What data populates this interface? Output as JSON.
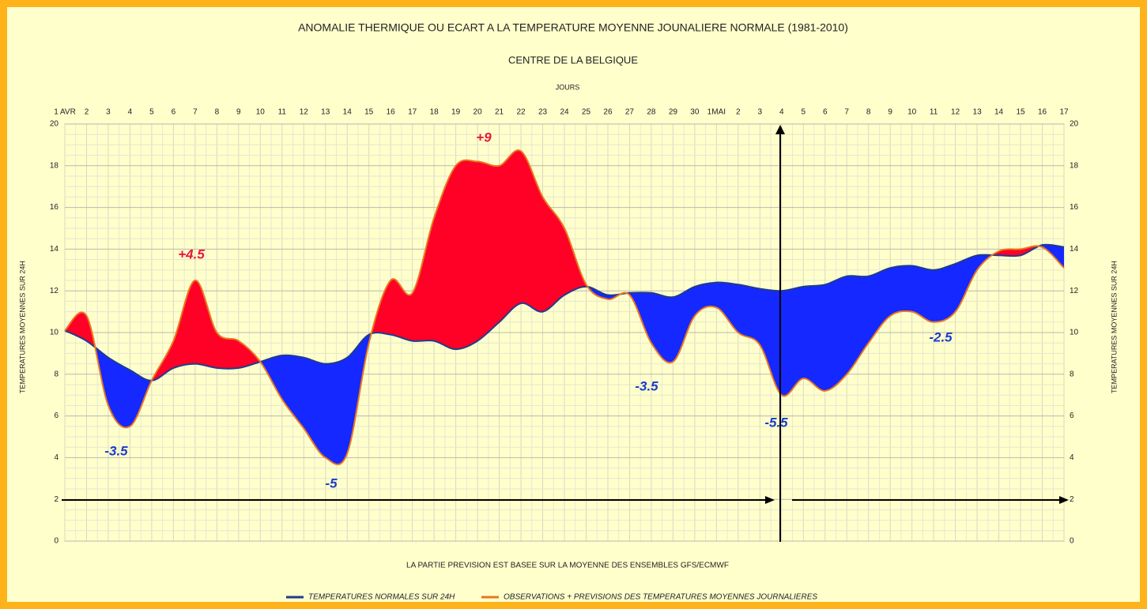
{
  "chart_data": {
    "type": "line",
    "title": "ANOMALIE THERMIQUE OU ECART A LA TEMPERATURE MOYENNE JOUNALIERE NORMALE (1981-2010)",
    "subtitle": "CENTRE DE LA BELGIQUE",
    "xlabel": "JOURS",
    "ylabel": "TEMPERATURES MOYENNES SUR 24H",
    "note": "LA PARTIE PREVISION EST BASEE SUR LA MOYENNE DES ENSEMBLES GFS/ECMWF",
    "categories": [
      "1 AVR",
      "2",
      "3",
      "4",
      "5",
      "6",
      "7",
      "8",
      "9",
      "10",
      "11",
      "12",
      "13",
      "14",
      "15",
      "16",
      "17",
      "18",
      "19",
      "20",
      "21",
      "22",
      "23",
      "24",
      "25",
      "26",
      "27",
      "28",
      "29",
      "30",
      "1MAI",
      "2",
      "3",
      "4",
      "5",
      "6",
      "7",
      "8",
      "9",
      "10",
      "11",
      "12",
      "13",
      "14",
      "15",
      "16",
      "17"
    ],
    "series": [
      {
        "name": "TEMPERATURES NORMALES SUR 24H",
        "color": "#1f3c8c",
        "values": [
          10.1,
          9.6,
          8.8,
          8.2,
          7.7,
          8.3,
          8.5,
          8.3,
          8.3,
          8.6,
          8.9,
          8.8,
          8.5,
          8.8,
          9.9,
          9.9,
          9.6,
          9.6,
          9.2,
          9.6,
          10.5,
          11.4,
          11.0,
          11.8,
          12.2,
          11.8,
          11.9,
          11.9,
          11.7,
          12.2,
          12.4,
          12.3,
          12.1,
          12.0,
          12.2,
          12.3,
          12.7,
          12.7,
          13.1,
          13.2,
          13.0,
          13.3,
          13.7,
          13.7,
          13.7,
          14.2,
          14.1
        ]
      },
      {
        "name": "OBSERVATIONS + PREVISIONS DES TEMPERATURES MOYENNES JOURNALIERES",
        "color": "#e8761e",
        "values": [
          10.1,
          10.8,
          6.5,
          5.5,
          7.7,
          9.6,
          12.5,
          10.0,
          9.6,
          8.6,
          6.8,
          5.4,
          4.0,
          4.2,
          9.5,
          12.5,
          11.9,
          15.5,
          18.0,
          18.2,
          18.0,
          18.7,
          16.5,
          15.0,
          12.3,
          11.6,
          11.8,
          9.5,
          8.6,
          10.8,
          11.2,
          10.0,
          9.4,
          7.0,
          7.8,
          7.2,
          8.0,
          9.5,
          10.8,
          11.0,
          10.5,
          11.0,
          13.0,
          13.9,
          14.0,
          14.1,
          13.1
        ]
      }
    ],
    "fill_above": "#ff0026",
    "fill_below": "#1428ff",
    "ylim": [
      0,
      20
    ],
    "yticks": [
      0,
      2,
      4,
      6,
      8,
      10,
      12,
      14,
      16,
      18,
      20
    ],
    "grid": true,
    "annotations": [
      {
        "text": "+9",
        "color": "#e8173a"
      },
      {
        "text": "+4.5",
        "color": "#e8173a"
      },
      {
        "text": "-3.5",
        "color": "#1a3bcc"
      },
      {
        "text": "-5",
        "color": "#1a3bcc"
      },
      {
        "text": "-3.5",
        "color": "#1a3bcc"
      },
      {
        "text": "-5.5",
        "color": "#1a3bcc"
      },
      {
        "text": "-2.5",
        "color": "#1a3bcc"
      }
    ]
  }
}
